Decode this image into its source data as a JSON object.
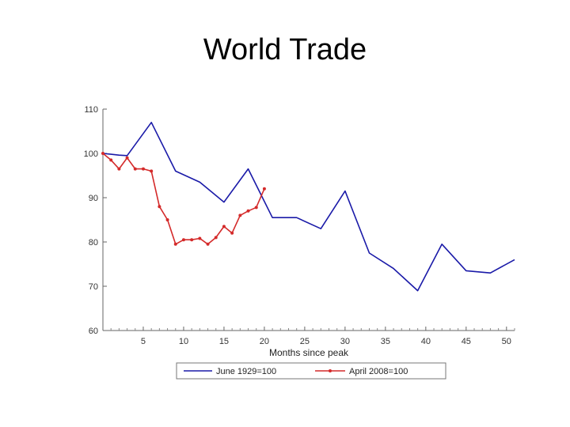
{
  "slide": {
    "title": "World Trade"
  },
  "chart_data": {
    "type": "line",
    "title": "World Trade",
    "xlabel": "Months since peak",
    "ylabel": "",
    "xlim": [
      0,
      51
    ],
    "ylim": [
      60,
      110
    ],
    "xticks": [
      5,
      10,
      15,
      20,
      25,
      30,
      35,
      40,
      45,
      50
    ],
    "yticks": [
      60,
      70,
      80,
      90,
      100,
      110
    ],
    "grid": false,
    "legend_position": "bottom",
    "series": [
      {
        "name": "June 1929=100",
        "color": "#1a1aa8",
        "markers": false,
        "points": [
          [
            0,
            100
          ],
          [
            1,
            99.8
          ],
          [
            2,
            99.6
          ],
          [
            3,
            99.5
          ],
          [
            6,
            107
          ],
          [
            9,
            96
          ],
          [
            12,
            93.5
          ],
          [
            15,
            89
          ],
          [
            18,
            96.5
          ],
          [
            21,
            85.5
          ],
          [
            24,
            85.5
          ],
          [
            27,
            83
          ],
          [
            30,
            91.5
          ],
          [
            33,
            77.5
          ],
          [
            36,
            74
          ],
          [
            39,
            69
          ],
          [
            42,
            79.5
          ],
          [
            45,
            73.5
          ],
          [
            48,
            73
          ],
          [
            51,
            76
          ]
        ]
      },
      {
        "name": "April 2008=100",
        "color": "#d42a2a",
        "markers": true,
        "points": [
          [
            0,
            100
          ],
          [
            1,
            98.5
          ],
          [
            2,
            96.5
          ],
          [
            3,
            99
          ],
          [
            4,
            96.5
          ],
          [
            5,
            96.5
          ],
          [
            6,
            96
          ],
          [
            7,
            88
          ],
          [
            8,
            85
          ],
          [
            9,
            79.5
          ],
          [
            10,
            80.5
          ],
          [
            11,
            80.5
          ],
          [
            12,
            80.8
          ],
          [
            13,
            79.5
          ],
          [
            14,
            81
          ],
          [
            15,
            83.5
          ],
          [
            16,
            82
          ],
          [
            17,
            86
          ],
          [
            18,
            87
          ],
          [
            19,
            87.8
          ],
          [
            20,
            92
          ]
        ]
      }
    ]
  }
}
